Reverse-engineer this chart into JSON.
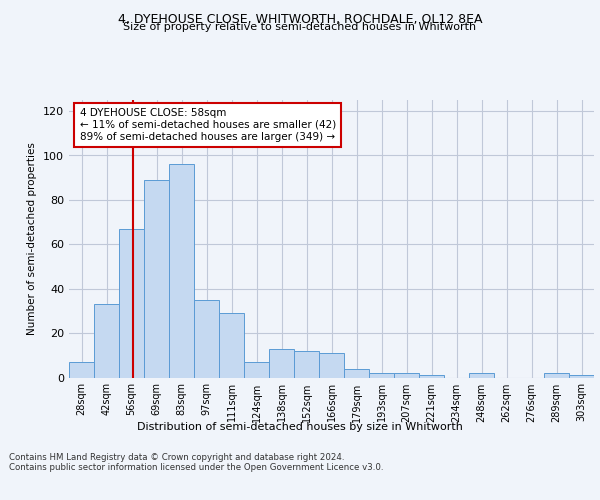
{
  "title1": "4, DYEHOUSE CLOSE, WHITWORTH, ROCHDALE, OL12 8EA",
  "title2": "Size of property relative to semi-detached houses in Whitworth",
  "xlabel": "Distribution of semi-detached houses by size in Whitworth",
  "ylabel": "Number of semi-detached properties",
  "bar_labels": [
    "28sqm",
    "42sqm",
    "56sqm",
    "69sqm",
    "83sqm",
    "97sqm",
    "111sqm",
    "124sqm",
    "138sqm",
    "152sqm",
    "166sqm",
    "179sqm",
    "193sqm",
    "207sqm",
    "221sqm",
    "234sqm",
    "248sqm",
    "262sqm",
    "276sqm",
    "289sqm",
    "303sqm"
  ],
  "bar_values": [
    7,
    33,
    67,
    89,
    96,
    35,
    29,
    7,
    13,
    12,
    11,
    4,
    2,
    2,
    1,
    0,
    2,
    0,
    0,
    2,
    1
  ],
  "bar_color": "#c5d9f1",
  "bar_edge_color": "#5b9bd5",
  "annotation_line1": "4 DYEHOUSE CLOSE: 58sqm",
  "annotation_line2": "← 11% of semi-detached houses are smaller (42)",
  "annotation_line3": "89% of semi-detached houses are larger (349) →",
  "property_line_x": 2.05,
  "ylim": [
    0,
    125
  ],
  "yticks": [
    0,
    20,
    40,
    60,
    80,
    100,
    120
  ],
  "footer1": "Contains HM Land Registry data © Crown copyright and database right 2024.",
  "footer2": "Contains public sector information licensed under the Open Government Licence v3.0.",
  "background_color": "#f0f4fa",
  "grid_color": "#c0c8d8",
  "annotation_box_color": "#ffffff",
  "annotation_box_edge": "#cc0000",
  "property_line_color": "#cc0000"
}
